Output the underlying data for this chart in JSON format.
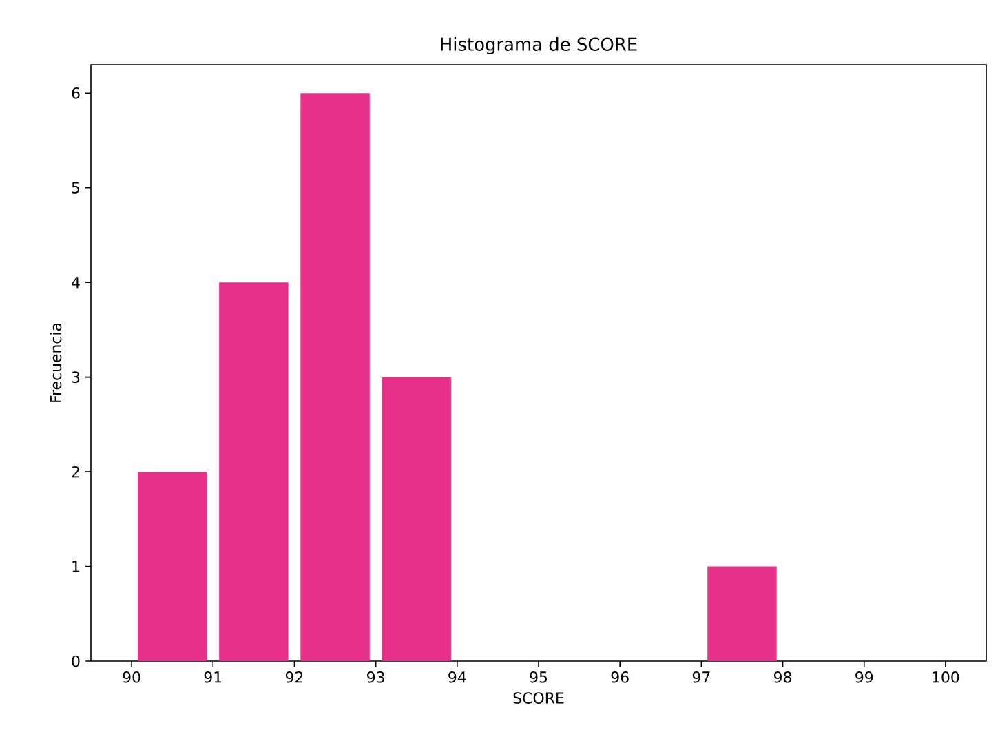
{
  "chart_data": {
    "type": "histogram",
    "title": "Histograma de SCORE",
    "xlabel": "SCORE",
    "ylabel": "Frecuencia",
    "bins": [
      90,
      91,
      92,
      93,
      94,
      95,
      96,
      97,
      98,
      99,
      100
    ],
    "values": [
      2,
      4,
      6,
      3,
      0,
      0,
      0,
      1,
      0,
      0
    ],
    "color": "#e6308a",
    "xlim": [
      89.5,
      100.5
    ],
    "ylim": [
      0,
      6.3
    ],
    "xticks": [
      90,
      91,
      92,
      93,
      94,
      95,
      96,
      97,
      98,
      99,
      100
    ],
    "yticks": [
      0,
      1,
      2,
      3,
      4,
      5,
      6
    ],
    "grid": false
  }
}
